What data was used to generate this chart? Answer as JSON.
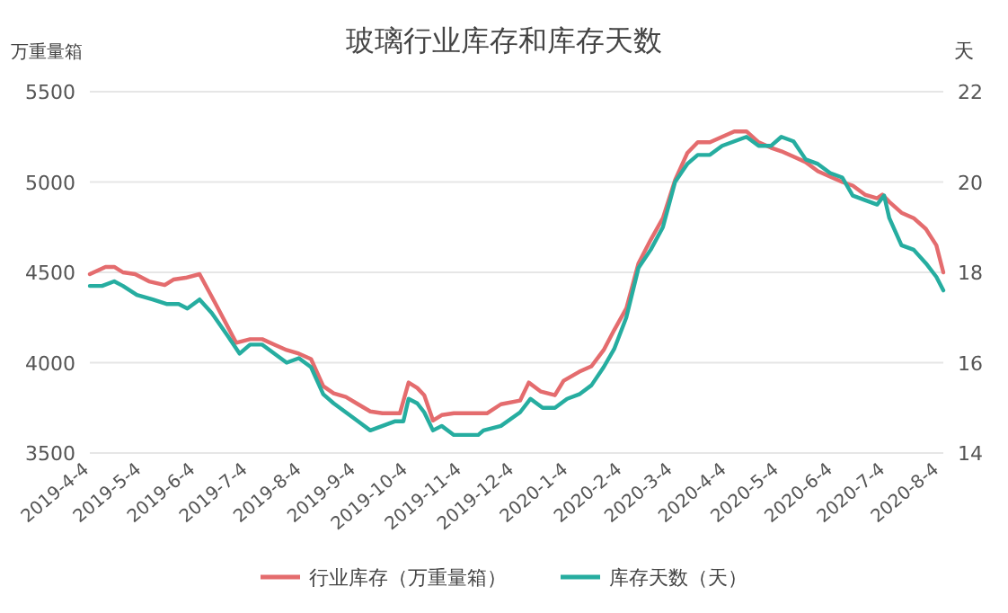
{
  "chart_data": {
    "type": "line",
    "title": "玻璃行业库存和库存天数",
    "ylabel": "万重量箱",
    "y2label": "天",
    "xlim": [
      "2019-04-04",
      "2020-08-06"
    ],
    "xticks": [
      {
        "value": "2019-04-04",
        "label": "2019-4-4"
      },
      {
        "value": "2019-05-04",
        "label": "2019-5-4"
      },
      {
        "value": "2019-06-04",
        "label": "2019-6-4"
      },
      {
        "value": "2019-07-04",
        "label": "2019-7-4"
      },
      {
        "value": "2019-08-04",
        "label": "2019-8-4"
      },
      {
        "value": "2019-09-04",
        "label": "2019-9-4"
      },
      {
        "value": "2019-10-04",
        "label": "2019-10-4"
      },
      {
        "value": "2019-11-04",
        "label": "2019-11-4"
      },
      {
        "value": "2019-12-04",
        "label": "2019-12-4"
      },
      {
        "value": "2020-01-04",
        "label": "2020-1-4"
      },
      {
        "value": "2020-02-04",
        "label": "2020-2-4"
      },
      {
        "value": "2020-03-04",
        "label": "2020-3-4"
      },
      {
        "value": "2020-04-04",
        "label": "2020-4-4"
      },
      {
        "value": "2020-05-04",
        "label": "2020-5-4"
      },
      {
        "value": "2020-06-04",
        "label": "2020-6-4"
      },
      {
        "value": "2020-07-04",
        "label": "2020-7-4"
      },
      {
        "value": "2020-08-04",
        "label": "2020-8-4"
      }
    ],
    "ylim": [
      3500,
      5500
    ],
    "yticks": [
      3500,
      4000,
      4500,
      5000,
      5500
    ],
    "y2lim": [
      14,
      22
    ],
    "y2ticks": [
      14,
      16,
      18,
      20,
      22
    ],
    "grid": "y",
    "legend": "bottom",
    "series": [
      {
        "name": "行业库存（万重量箱）",
        "color": "#e46c6e",
        "x": [
          "2019-04-04",
          "2019-04-13",
          "2019-04-18",
          "2019-04-23",
          "2019-04-30",
          "2019-05-08",
          "2019-05-17",
          "2019-05-22",
          "2019-05-29",
          "2019-06-06",
          "2019-06-15",
          "2019-06-27",
          "2019-07-05",
          "2019-07-12",
          "2019-07-19",
          "2019-07-26",
          "2019-08-02",
          "2019-08-09",
          "2019-08-16",
          "2019-08-22",
          "2019-08-29",
          "2019-09-05",
          "2019-09-12",
          "2019-09-19",
          "2019-09-29",
          "2019-10-04",
          "2019-10-09",
          "2019-10-13",
          "2019-10-18",
          "2019-10-23",
          "2019-10-30",
          "2019-11-06",
          "2019-11-11",
          "2019-11-18",
          "2019-11-26",
          "2019-12-07",
          "2019-12-12",
          "2019-12-19",
          "2019-12-27",
          "2020-01-01",
          "2020-01-10",
          "2020-01-17",
          "2020-01-24",
          "2020-01-30",
          "2020-02-06",
          "2020-02-13",
          "2020-02-20",
          "2020-02-27",
          "2020-03-05",
          "2020-03-12",
          "2020-03-18",
          "2020-03-25",
          "2020-04-01",
          "2020-04-08",
          "2020-04-15",
          "2020-04-22",
          "2020-04-29",
          "2020-05-05",
          "2020-05-12",
          "2020-05-19",
          "2020-05-26",
          "2020-06-02",
          "2020-06-09",
          "2020-06-15",
          "2020-06-22",
          "2020-06-29",
          "2020-07-02",
          "2020-07-06",
          "2020-07-13",
          "2020-07-20",
          "2020-07-27",
          "2020-08-02",
          "2020-08-06"
        ],
        "values": [
          4490,
          4530,
          4530,
          4500,
          4490,
          4450,
          4430,
          4460,
          4470,
          4490,
          4330,
          4110,
          4130,
          4130,
          4100,
          4070,
          4050,
          4020,
          3870,
          3830,
          3810,
          3770,
          3730,
          3720,
          3720,
          3890,
          3860,
          3820,
          3680,
          3710,
          3720,
          3720,
          3720,
          3720,
          3770,
          3790,
          3890,
          3840,
          3820,
          3900,
          3950,
          3980,
          4070,
          4180,
          4300,
          4550,
          4680,
          4800,
          5010,
          5160,
          5220,
          5220,
          5250,
          5280,
          5280,
          5220,
          5190,
          5170,
          5140,
          5110,
          5060,
          5030,
          5000,
          4980,
          4930,
          4910,
          4930,
          4890,
          4830,
          4800,
          4740,
          4650,
          4500
        ]
      },
      {
        "name": "库存天数（天）",
        "color": "#26ada0",
        "axis": "y2",
        "x": [
          "2019-04-04",
          "2019-04-11",
          "2019-04-18",
          "2019-04-23",
          "2019-05-01",
          "2019-05-10",
          "2019-05-18",
          "2019-05-25",
          "2019-05-30",
          "2019-06-06",
          "2019-06-13",
          "2019-06-22",
          "2019-06-29",
          "2019-07-05",
          "2019-07-12",
          "2019-07-19",
          "2019-07-26",
          "2019-08-02",
          "2019-08-09",
          "2019-08-16",
          "2019-08-22",
          "2019-08-29",
          "2019-09-05",
          "2019-09-12",
          "2019-09-19",
          "2019-09-26",
          "2019-10-01",
          "2019-10-04",
          "2019-10-09",
          "2019-10-13",
          "2019-10-18",
          "2019-10-23",
          "2019-10-30",
          "2019-11-06",
          "2019-11-13",
          "2019-11-16",
          "2019-11-26",
          "2019-12-07",
          "2019-12-13",
          "2019-12-20",
          "2019-12-27",
          "2020-01-03",
          "2020-01-10",
          "2020-01-17",
          "2020-01-24",
          "2020-01-30",
          "2020-02-06",
          "2020-02-13",
          "2020-02-20",
          "2020-02-27",
          "2020-03-05",
          "2020-03-12",
          "2020-03-18",
          "2020-03-25",
          "2020-04-01",
          "2020-04-08",
          "2020-04-15",
          "2020-04-22",
          "2020-04-29",
          "2020-05-05",
          "2020-05-12",
          "2020-05-19",
          "2020-05-26",
          "2020-06-02",
          "2020-06-09",
          "2020-06-15",
          "2020-06-22",
          "2020-06-29",
          "2020-07-03",
          "2020-07-06",
          "2020-07-13",
          "2020-07-20",
          "2020-07-27",
          "2020-08-02",
          "2020-08-06"
        ],
        "values": [
          17.7,
          17.7,
          17.8,
          17.7,
          17.5,
          17.4,
          17.3,
          17.3,
          17.2,
          17.4,
          17.1,
          16.6,
          16.2,
          16.4,
          16.4,
          16.2,
          16.0,
          16.1,
          15.9,
          15.3,
          15.1,
          14.9,
          14.7,
          14.5,
          14.6,
          14.7,
          14.7,
          15.2,
          15.1,
          14.9,
          14.5,
          14.6,
          14.4,
          14.4,
          14.4,
          14.5,
          14.6,
          14.9,
          15.2,
          15.0,
          15.0,
          15.2,
          15.3,
          15.5,
          15.9,
          16.3,
          17.0,
          18.1,
          18.5,
          19.0,
          20.0,
          20.4,
          20.6,
          20.6,
          20.8,
          20.9,
          21.0,
          20.8,
          20.8,
          21.0,
          20.9,
          20.5,
          20.4,
          20.2,
          20.1,
          19.7,
          19.6,
          19.5,
          19.7,
          19.2,
          18.6,
          18.5,
          18.2,
          17.9,
          17.6
        ]
      }
    ]
  }
}
